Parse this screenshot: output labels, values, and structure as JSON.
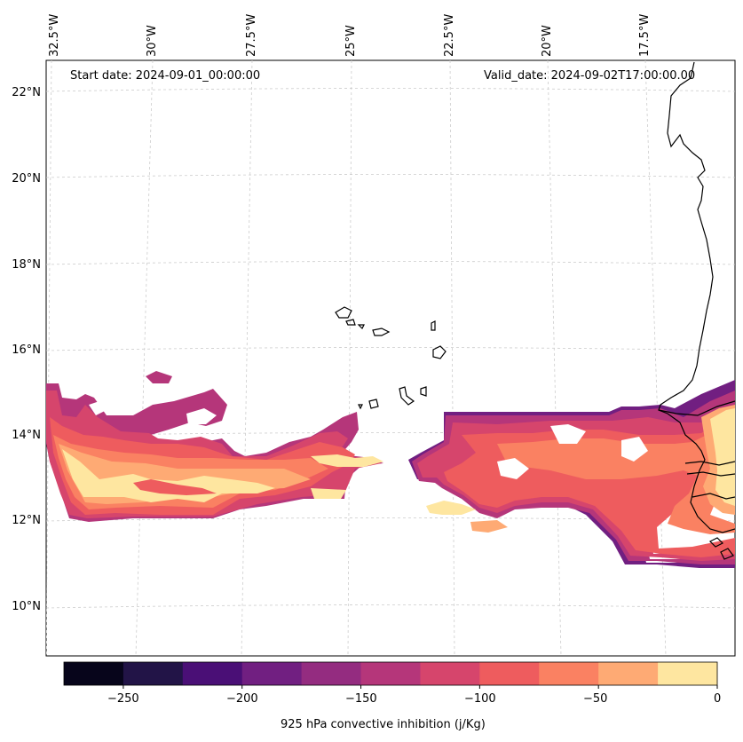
{
  "header": {
    "start_date": "Start date: 2024-09-01_00:00:00",
    "valid_date": "Valid_date: 2024-09-02T17:00:00.00"
  },
  "lon_labels": [
    "32.5°W",
    "30°W",
    "27.5°W",
    "25°W",
    "22.5°W",
    "20°W",
    "17.5°W"
  ],
  "lat_labels": [
    "22°N",
    "20°N",
    "18°N",
    "16°N",
    "14°N",
    "12°N",
    "10°N"
  ],
  "colorbar": {
    "label": "925 hPa convective inhibition (j/Kg)",
    "ticks": [
      "−250",
      "−200",
      "−150",
      "−100",
      "−50",
      "0"
    ],
    "colors": [
      "#07051b",
      "#221447",
      "#4a0f76",
      "#711f81",
      "#942c80",
      "#b5367a",
      "#d6456c",
      "#ee5c5e",
      "#fa8162",
      "#feaa74",
      "#fee6a0"
    ]
  },
  "field_colors": {
    "deep": "#b5367a",
    "mid": "#d6456c",
    "warm": "#ee5c5e",
    "orange": "#fa8162",
    "light": "#feaa74",
    "pale": "#fee6a0",
    "purple": "#942c80",
    "dark": "#711f81"
  }
}
